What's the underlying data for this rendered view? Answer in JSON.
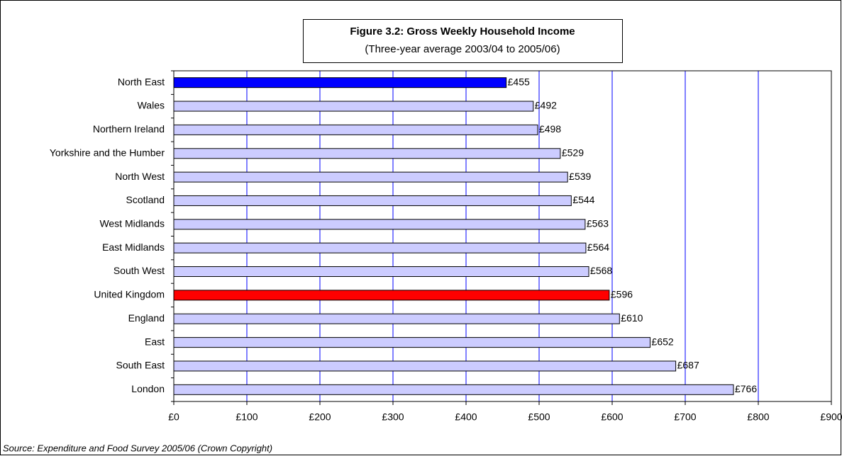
{
  "chart_data": {
    "type": "barh",
    "title": "Figure 3.2: Gross Weekly Household Income",
    "subtitle": "(Three-year average 2003/04 to 2005/06)",
    "source": "Source: Expenditure and Food Survey 2005/06 (Crown Copyright)",
    "categories": [
      "North East",
      "Wales",
      "Northern Ireland",
      "Yorkshire and the Humber",
      "North West",
      "Scotland",
      "West Midlands",
      "East Midlands",
      "South West",
      "United Kingdom",
      "England",
      "East",
      "South East",
      "London"
    ],
    "values": [
      455,
      492,
      498,
      529,
      539,
      544,
      563,
      564,
      568,
      596,
      610,
      652,
      687,
      766
    ],
    "value_labels": [
      "£455",
      "£492",
      "£498",
      "£529",
      "£539",
      "£544",
      "£563",
      "£564",
      "£568",
      "£596",
      "£610",
      "£652",
      "£687",
      "£766"
    ],
    "colors": [
      "#0000ff",
      "#ccccff",
      "#ccccff",
      "#ccccff",
      "#ccccff",
      "#ccccff",
      "#ccccff",
      "#ccccff",
      "#ccccff",
      "#ff0000",
      "#ccccff",
      "#ccccff",
      "#ccccff",
      "#ccccff"
    ],
    "xlim": [
      0,
      900
    ],
    "xticks": [
      {
        "value": 0,
        "label": "£0"
      },
      {
        "value": 100,
        "label": "£100"
      },
      {
        "value": 200,
        "label": "£200"
      },
      {
        "value": 300,
        "label": "£300"
      },
      {
        "value": 400,
        "label": "£400"
      },
      {
        "value": 500,
        "label": "£500"
      },
      {
        "value": 600,
        "label": "£600"
      },
      {
        "value": 700,
        "label": "£700"
      },
      {
        "value": 800,
        "label": "£800"
      },
      {
        "value": 900,
        "label": "£900"
      }
    ],
    "grid": true,
    "grid_color": "#0000ff"
  }
}
